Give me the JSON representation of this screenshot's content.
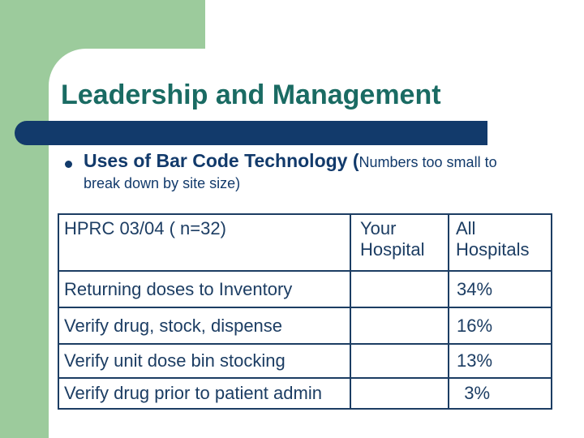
{
  "slide": {
    "title": "Leadership and Management",
    "bullet": {
      "bold_lead": "Uses of Bar Code Technology (",
      "note_line1": "Numbers too small to",
      "note_line2": "break down by site size)"
    },
    "table": {
      "columns": [
        "HPRC 03/04 ( n=32)",
        "Your Hospital",
        "All Hospitals"
      ],
      "rows": [
        {
          "label": "Returning doses to Inventory",
          "your_hospital": "",
          "all_hospitals": "34%"
        },
        {
          "label": "Verify drug, stock, dispense",
          "your_hospital": "",
          "all_hospitals": "16%"
        },
        {
          "label": "Verify unit dose bin stocking",
          "your_hospital": "",
          "all_hospitals": "13%"
        },
        {
          "label": "Verify drug prior to patient admin",
          "your_hospital": "",
          "all_hospitals": "3%"
        }
      ]
    },
    "colors": {
      "panel_green": "#9CCB9C",
      "title_teal": "#1A6B63",
      "accent_navy": "#123A6B",
      "table_ink": "#1C3D63",
      "background": "#FFFFFF"
    }
  }
}
